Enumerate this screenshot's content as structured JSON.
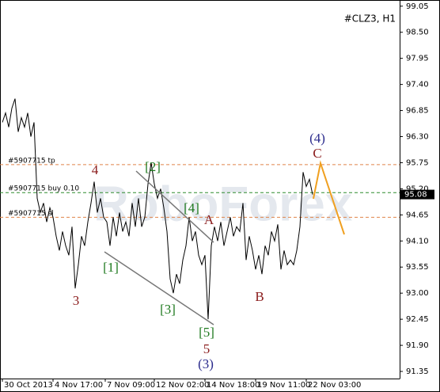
{
  "chart_data": {
    "type": "line",
    "title": "#CLZ3, H1",
    "watermark": "RoboForex",
    "color": "#000000",
    "values": [
      96.6,
      96.8,
      96.5,
      96.9,
      97.1,
      96.4,
      96.7,
      96.5,
      96.8,
      96.3,
      96.6,
      95.0,
      94.7,
      94.9,
      94.5,
      94.8,
      94.6,
      94.2,
      93.9,
      94.3,
      94.0,
      93.8,
      94.4,
      93.1,
      93.6,
      94.2,
      94.0,
      94.5,
      94.9,
      95.35,
      94.7,
      95.0,
      94.6,
      94.5,
      94.0,
      94.6,
      94.2,
      94.7,
      94.3,
      94.5,
      94.2,
      94.9,
      94.4,
      95.0,
      94.4,
      94.6,
      95.3,
      95.75,
      95.3,
      95.0,
      95.2,
      94.8,
      94.3,
      93.3,
      93.0,
      93.4,
      93.2,
      93.7,
      94.0,
      94.6,
      94.1,
      94.3,
      93.8,
      93.6,
      93.8,
      92.45,
      94.0,
      94.4,
      94.1,
      94.5,
      94.0,
      94.3,
      94.6,
      94.2,
      94.4,
      94.3,
      94.9,
      93.7,
      94.2,
      93.9,
      93.5,
      93.8,
      93.4,
      94.0,
      93.8,
      94.3,
      94.1,
      94.45,
      93.5,
      93.9,
      93.6,
      93.7,
      93.6,
      93.9,
      94.4,
      95.55,
      95.25,
      95.4,
      95.08
    ],
    "xlim": [
      0,
      125.5
    ],
    "xticks": [
      {
        "value": 0,
        "label": "30 Oct 2013"
      },
      {
        "value": 16,
        "label": "4 Nov 17:00"
      },
      {
        "value": 32.5,
        "label": "7 Nov 09:00"
      },
      {
        "value": 48,
        "label": "12 Nov 02:00"
      },
      {
        "value": 64,
        "label": "14 Nov 18:00"
      },
      {
        "value": 80,
        "label": "19 Nov 11:00"
      },
      {
        "value": 96,
        "label": "22 Nov 03:00"
      }
    ],
    "ylim": [
      91.2,
      99.13
    ],
    "yticks": [
      99.05,
      {
        "value": 98.5,
        "label": "98.50"
      },
      97.95,
      {
        "value": 97.4,
        "label": "97.40"
      },
      96.85,
      {
        "value": 96.3,
        "label": "96.30"
      },
      95.75,
      {
        "value": 95.2,
        "label": "95.20"
      },
      94.65,
      {
        "value": 94.1,
        "label": "94.10"
      },
      93.55,
      {
        "value": 93.0,
        "label": "93.00"
      },
      92.45,
      {
        "value": 91.9,
        "label": "91.90"
      },
      91.35
    ],
    "order_lines": [
      {
        "name": "#5907715 tp",
        "value": 95.71,
        "color": "#e0844a"
      },
      {
        "name": "#5907715 buy 0.10",
        "value": 95.12,
        "color": "#2e8b2e"
      },
      {
        "name": "#5907715 sl",
        "value": 94.6,
        "color": "#e0844a"
      }
    ],
    "annotations": [
      {
        "text": "(4)",
        "color": "#2b2b8c"
      },
      {
        "text": "C",
        "color": "#8b1c1c"
      },
      {
        "text": "4",
        "color": "#8b1c1c"
      },
      {
        "text": "[2]",
        "color": "#1f7a1f"
      },
      {
        "text": "[4]",
        "color": "#1f7a1f"
      },
      {
        "text": "A",
        "color": "#8b1c1c"
      },
      {
        "text": "[1]",
        "color": "#1f7a1f"
      },
      {
        "text": "3",
        "color": "#8b1c1c"
      },
      {
        "text": "[3]",
        "color": "#1f7a1f"
      },
      {
        "text": "B",
        "color": "#8b1c1c"
      },
      {
        "text": "[5]",
        "color": "#1f7a1f"
      },
      {
        "text": "5",
        "color": "#8b1c1c"
      },
      {
        "text": "(3)",
        "color": "#2b2b8c"
      }
    ]
  }
}
